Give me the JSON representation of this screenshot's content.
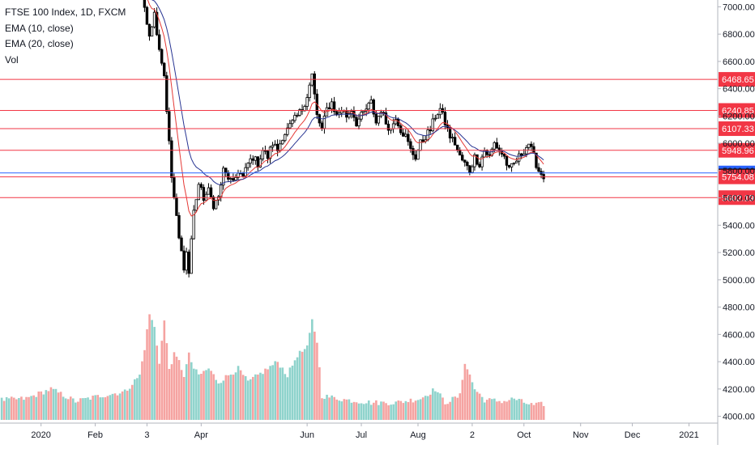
{
  "legend": {
    "symbol": "FTSE 100 Index, 1D, FXCM",
    "ema10": "EMA (10, close)",
    "ema20": "EMA (20, close)",
    "vol": "Vol"
  },
  "colors": {
    "up": "#26a69a",
    "down": "#ef5350",
    "vol_up": "#8fd3cc",
    "vol_down": "#f5a3a1",
    "ema10": "#e53935",
    "ema20": "#283593",
    "hline": "#f23645",
    "hline_blue": "#2962ff",
    "axis_text": "#131722",
    "candle": "#000000"
  },
  "chart_data": {
    "type": "candlestick",
    "y_range": [
      3950,
      7050
    ],
    "y_ticks": [
      "7000.00",
      "6800.00",
      "6600.00",
      "6400.00",
      "6200.00",
      "6000.00",
      "5800.00",
      "5600.00",
      "5400.00",
      "5200.00",
      "5000.00",
      "4800.00",
      "4600.00",
      "4400.00",
      "4200.00",
      "4000.00"
    ],
    "x_labels": [
      {
        "label": "2020",
        "t": 16
      },
      {
        "label": "Feb",
        "t": 38
      },
      {
        "label": "3",
        "t": 59
      },
      {
        "label": "Apr",
        "t": 81
      },
      {
        "label": "Jun",
        "t": 124
      },
      {
        "label": "Jul",
        "t": 146
      },
      {
        "label": "Aug",
        "t": 169
      },
      {
        "label": "2",
        "t": 191
      },
      {
        "label": "Oct",
        "t": 212
      },
      {
        "label": "Nov",
        "t": 235
      },
      {
        "label": "Dec",
        "t": 256
      },
      {
        "label": "2021",
        "t": 279
      }
    ],
    "t_range": [
      0,
      290
    ],
    "levels": [
      {
        "label": "6468.65",
        "value": 6468.65,
        "color": "red",
        "line": true
      },
      {
        "label": "6240.85",
        "value": 6240.85,
        "color": "red",
        "line": true
      },
      {
        "label": "6107.33",
        "value": 6107.33,
        "color": "red",
        "line": true
      },
      {
        "label": "5948.96",
        "value": 5948.96,
        "color": "red",
        "line": true
      },
      {
        "label": "5782.83",
        "value": 5782.83,
        "color": "blue",
        "line": true
      },
      {
        "label": "5760.56",
        "value": 5760.56,
        "color": "black",
        "line": false
      },
      {
        "label": "5754.08",
        "value": 5754.08,
        "color": "red",
        "line": true
      },
      {
        "label": "5602.19",
        "value": 5602.19,
        "color": "red",
        "line": true
      }
    ],
    "close_anchors": [
      [
        56,
        7150
      ],
      [
        58,
        7000
      ],
      [
        60,
        6800
      ],
      [
        62,
        6950
      ],
      [
        64,
        6700
      ],
      [
        66,
        6500
      ],
      [
        68,
        6000
      ],
      [
        69,
        5750
      ],
      [
        70,
        5600
      ],
      [
        72,
        5300
      ],
      [
        74,
        5100
      ],
      [
        75,
        5200
      ],
      [
        76,
        5050
      ],
      [
        77,
        5300
      ],
      [
        78,
        5500
      ],
      [
        80,
        5700
      ],
      [
        82,
        5600
      ],
      [
        84,
        5650
      ],
      [
        86,
        5550
      ],
      [
        88,
        5600
      ],
      [
        90,
        5800
      ],
      [
        92,
        5750
      ],
      [
        94,
        5700
      ],
      [
        96,
        5800
      ],
      [
        98,
        5750
      ],
      [
        100,
        5850
      ],
      [
        102,
        5900
      ],
      [
        104,
        5850
      ],
      [
        106,
        5950
      ],
      [
        108,
        5900
      ],
      [
        110,
        6000
      ],
      [
        112,
        5950
      ],
      [
        114,
        6050
      ],
      [
        116,
        6100
      ],
      [
        118,
        6150
      ],
      [
        120,
        6200
      ],
      [
        122,
        6250
      ],
      [
        124,
        6350
      ],
      [
        126,
        6500
      ],
      [
        128,
        6200
      ],
      [
        130,
        6100
      ],
      [
        132,
        6250
      ],
      [
        134,
        6300
      ],
      [
        136,
        6200
      ],
      [
        138,
        6250
      ],
      [
        140,
        6200
      ],
      [
        142,
        6250
      ],
      [
        144,
        6150
      ],
      [
        146,
        6200
      ],
      [
        148,
        6250
      ],
      [
        150,
        6300
      ],
      [
        152,
        6150
      ],
      [
        154,
        6250
      ],
      [
        156,
        6150
      ],
      [
        158,
        6100
      ],
      [
        160,
        6200
      ],
      [
        162,
        6100
      ],
      [
        164,
        6050
      ],
      [
        166,
        5950
      ],
      [
        168,
        5900
      ],
      [
        170,
        6000
      ],
      [
        172,
        6050
      ],
      [
        174,
        6100
      ],
      [
        176,
        6200
      ],
      [
        178,
        6250
      ],
      [
        180,
        6150
      ],
      [
        182,
        6050
      ],
      [
        184,
        6000
      ],
      [
        186,
        5900
      ],
      [
        188,
        5850
      ],
      [
        190,
        5800
      ],
      [
        192,
        5900
      ],
      [
        194,
        5850
      ],
      [
        196,
        5950
      ],
      [
        198,
        5900
      ],
      [
        200,
        6000
      ],
      [
        202,
        5950
      ],
      [
        204,
        5900
      ],
      [
        206,
        5800
      ],
      [
        208,
        5850
      ],
      [
        210,
        5900
      ],
      [
        212,
        5950
      ],
      [
        214,
        6000
      ],
      [
        216,
        5900
      ],
      [
        218,
        5800
      ],
      [
        220,
        5760
      ]
    ],
    "volume_anchors": [
      [
        0,
        4120
      ],
      [
        10,
        4130
      ],
      [
        20,
        4200
      ],
      [
        30,
        4110
      ],
      [
        40,
        4150
      ],
      [
        50,
        4180
      ],
      [
        56,
        4300
      ],
      [
        58,
        4500
      ],
      [
        60,
        4750
      ],
      [
        62,
        4650
      ],
      [
        64,
        4400
      ],
      [
        66,
        4700
      ],
      [
        68,
        4350
      ],
      [
        70,
        4450
      ],
      [
        72,
        4400
      ],
      [
        74,
        4300
      ],
      [
        76,
        4450
      ],
      [
        78,
        4350
      ],
      [
        80,
        4300
      ],
      [
        84,
        4350
      ],
      [
        88,
        4250
      ],
      [
        92,
        4300
      ],
      [
        96,
        4350
      ],
      [
        100,
        4250
      ],
      [
        104,
        4300
      ],
      [
        108,
        4350
      ],
      [
        112,
        4400
      ],
      [
        116,
        4300
      ],
      [
        120,
        4450
      ],
      [
        124,
        4500
      ],
      [
        126,
        4700
      ],
      [
        128,
        4550
      ],
      [
        130,
        4150
      ],
      [
        140,
        4120
      ],
      [
        150,
        4100
      ],
      [
        160,
        4100
      ],
      [
        170,
        4130
      ],
      [
        176,
        4200
      ],
      [
        180,
        4100
      ],
      [
        186,
        4150
      ],
      [
        188,
        4400
      ],
      [
        190,
        4300
      ],
      [
        192,
        4200
      ],
      [
        196,
        4120
      ],
      [
        204,
        4110
      ],
      [
        208,
        4130
      ],
      [
        212,
        4100
      ],
      [
        216,
        4080
      ],
      [
        220,
        4090
      ]
    ]
  }
}
